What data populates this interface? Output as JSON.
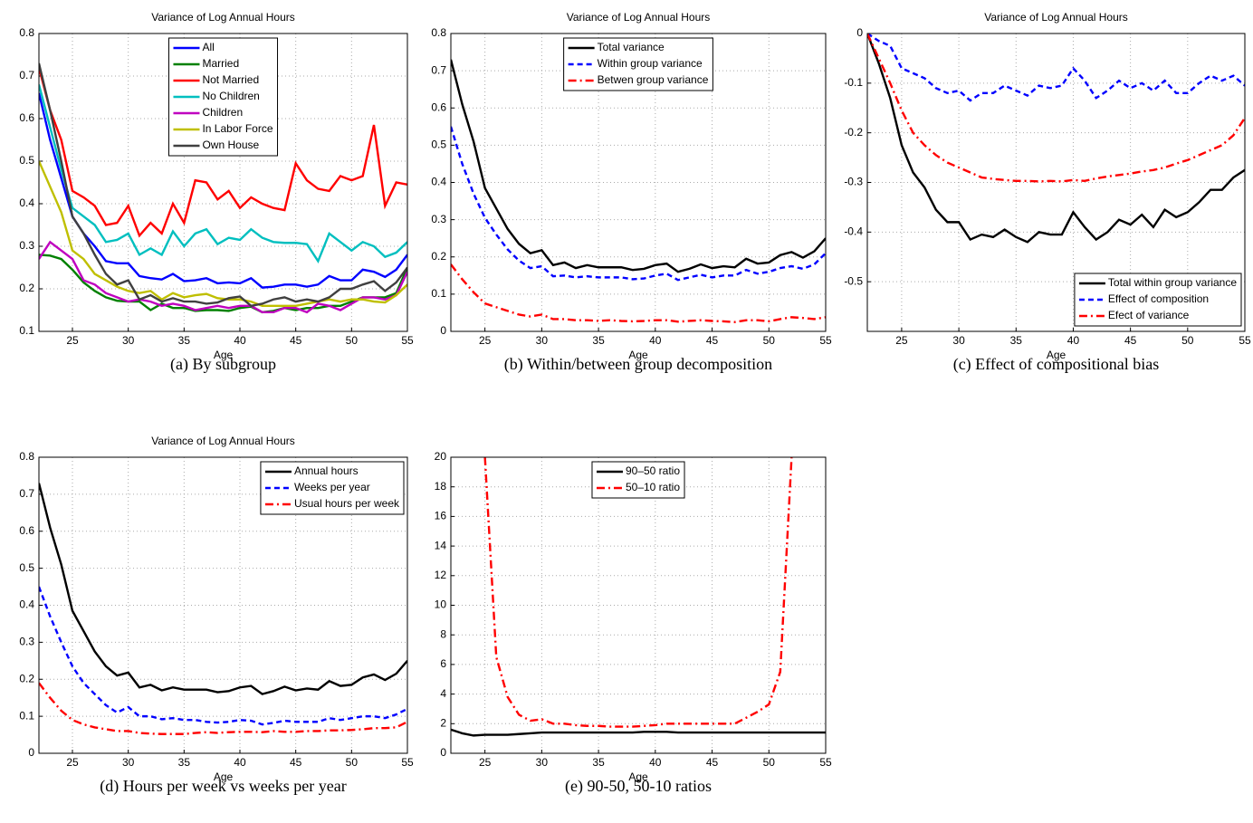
{
  "chart_data": [
    {
      "type": "line",
      "title": "Variance of Log Annual Hours",
      "xlabel": "Age",
      "caption": "(a) By subgroup",
      "x": [
        22,
        23,
        24,
        25,
        26,
        27,
        28,
        29,
        30,
        31,
        32,
        33,
        34,
        35,
        36,
        37,
        38,
        39,
        40,
        41,
        42,
        43,
        44,
        45,
        46,
        47,
        48,
        49,
        50,
        51,
        52,
        53,
        54,
        55
      ],
      "xlim": [
        22,
        55
      ],
      "xticks": [
        25,
        30,
        35,
        40,
        45,
        50,
        55
      ],
      "ylim": [
        0.1,
        0.8
      ],
      "yticks": [
        0.1,
        0.2,
        0.3,
        0.4,
        0.5,
        0.6,
        0.7,
        0.8
      ],
      "grid": true,
      "legend": "upper center",
      "series": [
        {
          "name": "All",
          "color": "#0000ff",
          "style": "solid",
          "values": [
            0.66,
            0.55,
            0.46,
            0.37,
            0.33,
            0.3,
            0.265,
            0.26,
            0.26,
            0.23,
            0.225,
            0.222,
            0.235,
            0.218,
            0.22,
            0.225,
            0.213,
            0.215,
            0.213,
            0.225,
            0.203,
            0.205,
            0.21,
            0.21,
            0.205,
            0.21,
            0.23,
            0.22,
            0.22,
            0.245,
            0.24,
            0.228,
            0.245,
            0.28
          ]
        },
        {
          "name": "Married",
          "color": "#008000",
          "style": "solid",
          "values": [
            0.28,
            0.278,
            0.27,
            0.245,
            0.215,
            0.195,
            0.18,
            0.172,
            0.17,
            0.17,
            0.15,
            0.165,
            0.155,
            0.155,
            0.148,
            0.15,
            0.15,
            0.148,
            0.155,
            0.158,
            0.145,
            0.148,
            0.155,
            0.15,
            0.155,
            0.155,
            0.16,
            0.16,
            0.17,
            0.18,
            0.18,
            0.18,
            0.19,
            0.25
          ]
        },
        {
          "name": "Not Married",
          "color": "#ff0000",
          "style": "solid",
          "values": [
            0.72,
            0.62,
            0.55,
            0.43,
            0.415,
            0.395,
            0.35,
            0.355,
            0.395,
            0.325,
            0.355,
            0.33,
            0.4,
            0.355,
            0.455,
            0.45,
            0.41,
            0.43,
            0.39,
            0.415,
            0.4,
            0.39,
            0.385,
            0.495,
            0.455,
            0.435,
            0.43,
            0.465,
            0.455,
            0.465,
            0.585,
            0.395,
            0.45,
            0.445
          ]
        },
        {
          "name": "No Children",
          "color": "#00bfbf",
          "style": "solid",
          "values": [
            0.68,
            0.58,
            0.48,
            0.39,
            0.37,
            0.35,
            0.31,
            0.315,
            0.33,
            0.28,
            0.295,
            0.28,
            0.335,
            0.3,
            0.33,
            0.34,
            0.305,
            0.32,
            0.315,
            0.34,
            0.32,
            0.31,
            0.308,
            0.308,
            0.305,
            0.265,
            0.33,
            0.31,
            0.29,
            0.31,
            0.3,
            0.275,
            0.285,
            0.31
          ]
        },
        {
          "name": "Children",
          "color": "#bf00bf",
          "style": "solid",
          "values": [
            0.27,
            0.31,
            0.29,
            0.27,
            0.22,
            0.21,
            0.19,
            0.18,
            0.17,
            0.175,
            0.17,
            0.16,
            0.165,
            0.16,
            0.15,
            0.155,
            0.16,
            0.155,
            0.16,
            0.16,
            0.145,
            0.145,
            0.155,
            0.155,
            0.145,
            0.165,
            0.16,
            0.15,
            0.165,
            0.18,
            0.18,
            0.175,
            0.185,
            0.24
          ]
        },
        {
          "name": "In Labor Force",
          "color": "#bfbf00",
          "style": "solid",
          "values": [
            0.5,
            0.44,
            0.38,
            0.29,
            0.27,
            0.235,
            0.22,
            0.205,
            0.195,
            0.19,
            0.195,
            0.175,
            0.19,
            0.18,
            0.185,
            0.188,
            0.178,
            0.175,
            0.175,
            0.17,
            0.16,
            0.16,
            0.16,
            0.16,
            0.165,
            0.17,
            0.175,
            0.17,
            0.175,
            0.175,
            0.17,
            0.168,
            0.185,
            0.21
          ]
        },
        {
          "name": "Own House",
          "color": "#404040",
          "style": "solid",
          "values": [
            0.73,
            0.62,
            0.5,
            0.37,
            0.33,
            0.28,
            0.235,
            0.21,
            0.22,
            0.175,
            0.185,
            0.17,
            0.178,
            0.17,
            0.17,
            0.165,
            0.168,
            0.178,
            0.182,
            0.16,
            0.165,
            0.175,
            0.18,
            0.17,
            0.175,
            0.17,
            0.18,
            0.2,
            0.2,
            0.21,
            0.218,
            0.195,
            0.215,
            0.25
          ]
        }
      ]
    },
    {
      "type": "line",
      "title": "Variance of Log Annual Hours",
      "xlabel": "Age",
      "caption": "(b) Within/between group decomposition",
      "x": [
        22,
        23,
        24,
        25,
        26,
        27,
        28,
        29,
        30,
        31,
        32,
        33,
        34,
        35,
        36,
        37,
        38,
        39,
        40,
        41,
        42,
        43,
        44,
        45,
        46,
        47,
        48,
        49,
        50,
        51,
        52,
        53,
        54,
        55
      ],
      "xlim": [
        22,
        55
      ],
      "xticks": [
        25,
        30,
        35,
        40,
        45,
        50,
        55
      ],
      "ylim": [
        0,
        0.8
      ],
      "yticks": [
        0,
        0.1,
        0.2,
        0.3,
        0.4,
        0.5,
        0.6,
        0.7,
        0.8
      ],
      "grid": true,
      "legend": "upper center",
      "series": [
        {
          "name": "Total variance",
          "color": "#000000",
          "style": "solid",
          "values": [
            0.73,
            0.61,
            0.51,
            0.385,
            0.33,
            0.275,
            0.235,
            0.21,
            0.218,
            0.178,
            0.185,
            0.17,
            0.178,
            0.172,
            0.172,
            0.172,
            0.165,
            0.168,
            0.178,
            0.182,
            0.16,
            0.168,
            0.18,
            0.17,
            0.175,
            0.172,
            0.195,
            0.182,
            0.185,
            0.205,
            0.213,
            0.198,
            0.215,
            0.25
          ]
        },
        {
          "name": "Within group variance",
          "color": "#0000ff",
          "style": "dashed",
          "values": [
            0.55,
            0.45,
            0.37,
            0.305,
            0.26,
            0.22,
            0.19,
            0.17,
            0.175,
            0.148,
            0.15,
            0.145,
            0.148,
            0.145,
            0.145,
            0.145,
            0.14,
            0.142,
            0.15,
            0.155,
            0.138,
            0.145,
            0.152,
            0.145,
            0.15,
            0.15,
            0.165,
            0.155,
            0.16,
            0.17,
            0.175,
            0.168,
            0.18,
            0.21
          ]
        },
        {
          "name": "Betwen group variance",
          "color": "#ff0000",
          "style": "dashdot",
          "values": [
            0.18,
            0.14,
            0.105,
            0.075,
            0.065,
            0.055,
            0.045,
            0.04,
            0.045,
            0.033,
            0.033,
            0.03,
            0.03,
            0.028,
            0.03,
            0.028,
            0.027,
            0.028,
            0.03,
            0.03,
            0.026,
            0.028,
            0.03,
            0.028,
            0.027,
            0.025,
            0.03,
            0.03,
            0.027,
            0.033,
            0.038,
            0.036,
            0.033,
            0.038
          ]
        }
      ]
    },
    {
      "type": "line",
      "title": "Variance of Log Annual Hours",
      "xlabel": "Age",
      "caption": "(c) Effect of compositional bias",
      "x": [
        22,
        23,
        24,
        25,
        26,
        27,
        28,
        29,
        30,
        31,
        32,
        33,
        34,
        35,
        36,
        37,
        38,
        39,
        40,
        41,
        42,
        43,
        44,
        45,
        46,
        47,
        48,
        49,
        50,
        51,
        52,
        53,
        54,
        55
      ],
      "xlim": [
        22,
        55
      ],
      "xticks": [
        25,
        30,
        35,
        40,
        45,
        50,
        55
      ],
      "ylim": [
        -0.6,
        0
      ],
      "yticks": [
        -0.5,
        -0.4,
        -0.3,
        -0.2,
        -0.1,
        0
      ],
      "grid": true,
      "legend": "lower right",
      "series": [
        {
          "name": "Total within group variance",
          "color": "#000000",
          "style": "solid",
          "values": [
            0,
            -0.06,
            -0.13,
            -0.225,
            -0.28,
            -0.31,
            -0.355,
            -0.38,
            -0.38,
            -0.415,
            -0.405,
            -0.41,
            -0.395,
            -0.41,
            -0.42,
            -0.4,
            -0.405,
            -0.405,
            -0.36,
            -0.39,
            -0.415,
            -0.4,
            -0.375,
            -0.385,
            -0.365,
            -0.39,
            -0.355,
            -0.37,
            -0.36,
            -0.34,
            -0.315,
            -0.315,
            -0.29,
            -0.275
          ]
        },
        {
          "name": "Effect of composition",
          "color": "#0000ff",
          "style": "dashed",
          "values": [
            0,
            -0.015,
            -0.025,
            -0.07,
            -0.08,
            -0.09,
            -0.11,
            -0.12,
            -0.115,
            -0.135,
            -0.12,
            -0.12,
            -0.105,
            -0.115,
            -0.125,
            -0.105,
            -0.11,
            -0.105,
            -0.07,
            -0.095,
            -0.13,
            -0.115,
            -0.095,
            -0.11,
            -0.1,
            -0.115,
            -0.095,
            -0.12,
            -0.12,
            -0.1,
            -0.085,
            -0.095,
            -0.085,
            -0.105
          ]
        },
        {
          "name": "Efect of variance",
          "color": "#ff0000",
          "style": "dashdot",
          "values": [
            0,
            -0.05,
            -0.1,
            -0.155,
            -0.2,
            -0.225,
            -0.245,
            -0.26,
            -0.27,
            -0.28,
            -0.29,
            -0.293,
            -0.295,
            -0.297,
            -0.297,
            -0.298,
            -0.297,
            -0.298,
            -0.295,
            -0.297,
            -0.292,
            -0.288,
            -0.285,
            -0.282,
            -0.278,
            -0.275,
            -0.27,
            -0.262,
            -0.255,
            -0.245,
            -0.235,
            -0.225,
            -0.205,
            -0.17
          ]
        }
      ]
    },
    {
      "type": "line",
      "title": "Variance of Log Annual Hours",
      "xlabel": "Age",
      "caption": "(d) Hours per week vs weeks per year",
      "x": [
        22,
        23,
        24,
        25,
        26,
        27,
        28,
        29,
        30,
        31,
        32,
        33,
        34,
        35,
        36,
        37,
        38,
        39,
        40,
        41,
        42,
        43,
        44,
        45,
        46,
        47,
        48,
        49,
        50,
        51,
        52,
        53,
        54,
        55
      ],
      "xlim": [
        22,
        55
      ],
      "xticks": [
        25,
        30,
        35,
        40,
        45,
        50,
        55
      ],
      "ylim": [
        0,
        0.8
      ],
      "yticks": [
        0,
        0.1,
        0.2,
        0.3,
        0.4,
        0.5,
        0.6,
        0.7,
        0.8
      ],
      "grid": true,
      "legend": "upper right",
      "series": [
        {
          "name": "Annual hours",
          "color": "#000000",
          "style": "solid",
          "values": [
            0.73,
            0.61,
            0.51,
            0.385,
            0.33,
            0.275,
            0.235,
            0.21,
            0.218,
            0.178,
            0.185,
            0.17,
            0.178,
            0.172,
            0.172,
            0.172,
            0.165,
            0.168,
            0.178,
            0.182,
            0.16,
            0.168,
            0.18,
            0.17,
            0.175,
            0.172,
            0.195,
            0.182,
            0.185,
            0.205,
            0.213,
            0.198,
            0.215,
            0.25
          ]
        },
        {
          "name": "Weeks per year",
          "color": "#0000ff",
          "style": "dashed",
          "values": [
            0.45,
            0.37,
            0.3,
            0.235,
            0.19,
            0.16,
            0.13,
            0.11,
            0.125,
            0.1,
            0.1,
            0.092,
            0.095,
            0.09,
            0.09,
            0.085,
            0.083,
            0.085,
            0.09,
            0.088,
            0.078,
            0.082,
            0.088,
            0.085,
            0.085,
            0.085,
            0.095,
            0.09,
            0.095,
            0.1,
            0.1,
            0.095,
            0.105,
            0.12
          ]
        },
        {
          "name": "Usual hours per week",
          "color": "#ff0000",
          "style": "dashdot",
          "values": [
            0.19,
            0.15,
            0.115,
            0.09,
            0.078,
            0.07,
            0.065,
            0.06,
            0.06,
            0.055,
            0.053,
            0.052,
            0.052,
            0.052,
            0.055,
            0.057,
            0.055,
            0.057,
            0.058,
            0.058,
            0.057,
            0.06,
            0.058,
            0.058,
            0.06,
            0.06,
            0.062,
            0.062,
            0.063,
            0.065,
            0.068,
            0.068,
            0.07,
            0.085
          ]
        }
      ]
    },
    {
      "type": "line",
      "xlabel": "Age",
      "caption": "(e) 90-50, 50-10 ratios",
      "x": [
        22,
        23,
        24,
        25,
        26,
        27,
        28,
        29,
        30,
        31,
        32,
        33,
        34,
        35,
        36,
        37,
        38,
        39,
        40,
        41,
        42,
        43,
        44,
        45,
        46,
        47,
        48,
        49,
        50,
        51,
        52,
        53,
        54,
        55
      ],
      "xlim": [
        22,
        55
      ],
      "xticks": [
        25,
        30,
        35,
        40,
        45,
        50,
        55
      ],
      "ylim": [
        0,
        20
      ],
      "yticks": [
        0,
        2,
        4,
        6,
        8,
        10,
        12,
        14,
        16,
        18,
        20
      ],
      "grid": true,
      "legend": "upper center",
      "series": [
        {
          "name": "90–50 ratio",
          "color": "#000000",
          "style": "solid",
          "values": [
            1.6,
            1.35,
            1.2,
            1.25,
            1.25,
            1.25,
            1.3,
            1.35,
            1.4,
            1.4,
            1.4,
            1.4,
            1.4,
            1.4,
            1.4,
            1.4,
            1.4,
            1.45,
            1.45,
            1.45,
            1.4,
            1.4,
            1.4,
            1.4,
            1.4,
            1.4,
            1.4,
            1.4,
            1.4,
            1.4,
            1.4,
            1.4,
            1.4,
            1.4
          ]
        },
        {
          "name": "50–10 ratio",
          "color": "#ff0000",
          "style": "dashdot",
          "values": [
            null,
            null,
            null,
            20,
            6.5,
            3.8,
            2.6,
            2.2,
            2.3,
            2.0,
            2.0,
            1.9,
            1.85,
            1.85,
            1.8,
            1.8,
            1.8,
            1.85,
            1.9,
            2.0,
            2.0,
            2.0,
            2.0,
            2.0,
            2.0,
            2.0,
            2.4,
            2.8,
            3.3,
            5.5,
            20,
            null,
            null,
            null
          ]
        }
      ]
    }
  ]
}
